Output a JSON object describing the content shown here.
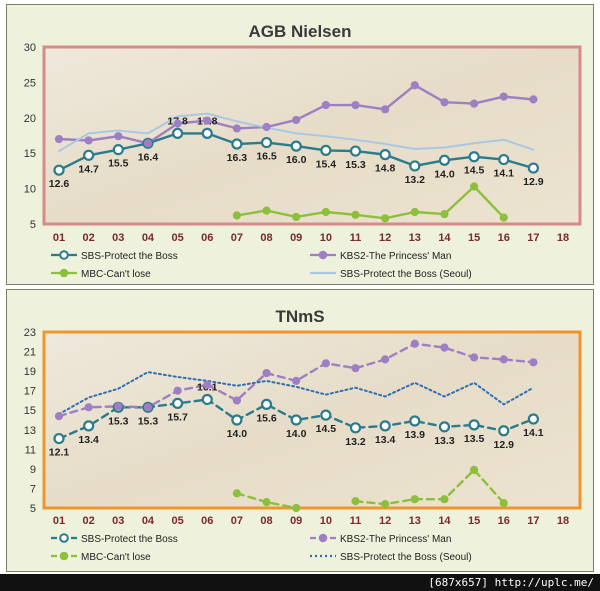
{
  "chart_data": [
    {
      "type": "line",
      "title": "AGB Nielsen",
      "categories": [
        "01",
        "02",
        "03",
        "04",
        "05",
        "06",
        "07",
        "08",
        "09",
        "10",
        "11",
        "12",
        "13",
        "14",
        "15",
        "16",
        "17",
        "18"
      ],
      "ylim": [
        5,
        30
      ],
      "yticks": [
        "5",
        "10",
        "15",
        "20",
        "25",
        "30"
      ],
      "grid": false,
      "legend_position": "bottom",
      "series": [
        {
          "name": "SBS-Protect the Boss",
          "values": [
            12.6,
            14.7,
            15.5,
            16.4,
            17.8,
            17.8,
            16.3,
            16.5,
            16.0,
            15.4,
            15.3,
            14.8,
            13.2,
            14.0,
            14.5,
            14.1,
            12.9,
            null
          ],
          "labels": [
            "12.6",
            "14.7",
            "15.5",
            "16.4",
            "17.8",
            "17.8",
            "16.3",
            "16.5",
            "16.0",
            "15.4",
            "15.3",
            "14.8",
            "13.2",
            "14.0",
            "14.5",
            "14.1",
            "12.9",
            ""
          ],
          "color": "#2a7b8c",
          "style": "solid",
          "marker": "circle"
        },
        {
          "name": "KBS2-The Princess' Man",
          "values": [
            17.0,
            16.8,
            17.4,
            16.4,
            19.2,
            19.6,
            18.5,
            18.7,
            19.7,
            21.8,
            21.8,
            21.2,
            24.6,
            22.2,
            22.0,
            23.0,
            22.6,
            null
          ],
          "color": "#9e7fc4",
          "style": "solid",
          "marker": "circle"
        },
        {
          "name": "MBC-Can't lose",
          "values": [
            null,
            null,
            null,
            null,
            null,
            null,
            6.2,
            6.9,
            6.0,
            6.7,
            6.3,
            5.8,
            6.7,
            6.4,
            10.3,
            5.9,
            null,
            null
          ],
          "color": "#8cc03c",
          "style": "solid",
          "marker": "circle"
        },
        {
          "name": "SBS-Protect the Boss (Seoul)",
          "values": [
            15.3,
            17.8,
            18.2,
            17.8,
            20.2,
            20.6,
            19.5,
            18.6,
            17.8,
            17.4,
            16.9,
            16.3,
            15.6,
            15.8,
            16.4,
            16.9,
            15.5,
            null
          ],
          "color": "#a9c8e4",
          "style": "solid",
          "marker": "none"
        }
      ]
    },
    {
      "type": "line",
      "title": "TNmS",
      "categories": [
        "01",
        "02",
        "03",
        "04",
        "05",
        "06",
        "07",
        "08",
        "09",
        "10",
        "11",
        "12",
        "13",
        "14",
        "15",
        "16",
        "17",
        "18"
      ],
      "ylim": [
        5,
        23
      ],
      "yticks": [
        "5",
        "7",
        "9",
        "11",
        "13",
        "15",
        "17",
        "19",
        "21",
        "23"
      ],
      "grid": false,
      "legend_position": "bottom",
      "series": [
        {
          "name": "SBS-Protect the Boss",
          "values": [
            12.1,
            13.4,
            15.3,
            15.3,
            15.7,
            16.1,
            14.0,
            15.6,
            14.0,
            14.5,
            13.2,
            13.4,
            13.9,
            13.3,
            13.5,
            12.9,
            14.1,
            null
          ],
          "labels": [
            "12.1",
            "13.4",
            "15.3",
            "15.3",
            "15.7",
            "16.1",
            "14.0",
            "15.6",
            "14.0",
            "14.5",
            "13.2",
            "13.4",
            "13.9",
            "13.3",
            "13.5",
            "12.9",
            "14.1",
            ""
          ],
          "color": "#2a7b8c",
          "style": "dashed",
          "marker": "circle"
        },
        {
          "name": "KBS2-The Princess' Man",
          "values": [
            14.4,
            15.3,
            15.4,
            15.3,
            17.0,
            17.6,
            16.0,
            18.8,
            18.0,
            19.8,
            19.3,
            20.2,
            21.8,
            21.4,
            20.4,
            20.2,
            19.9,
            null
          ],
          "color": "#9e7fc4",
          "style": "dashed",
          "marker": "circle"
        },
        {
          "name": "MBC-Can't lose",
          "values": [
            null,
            null,
            null,
            null,
            null,
            null,
            6.5,
            5.6,
            5.0,
            null,
            5.7,
            5.4,
            5.9,
            5.9,
            8.9,
            5.5,
            null,
            null
          ],
          "color": "#8cc03c",
          "style": "dashed",
          "marker": "circle"
        },
        {
          "name": "SBS-Protect the Boss (Seoul)",
          "values": [
            14.6,
            16.3,
            17.2,
            18.9,
            18.4,
            18.0,
            17.5,
            18.0,
            17.4,
            16.6,
            17.3,
            16.4,
            17.8,
            16.4,
            17.8,
            15.6,
            17.3,
            null
          ],
          "color": "#2f6fb3",
          "style": "dotted",
          "marker": "none"
        }
      ]
    }
  ],
  "watermark": "[687x657] http://uplc.me/"
}
